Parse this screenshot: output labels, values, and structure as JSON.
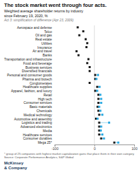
{
  "chart_data": {
    "type": "dumbbell",
    "orientation": "horizontal",
    "title": "The stock market went through four acts.",
    "subtitle": "Weighted average shareholder returns by industry\nsince February 19, 2020, %",
    "annotations": [
      "Act 3: simplification of difference (Apr 23, 2009)",
      "* group of 25 companies with highest market capitalization gains that place them in their own category",
      "Source: Corporate Performance Analytics, S&P Global",
      "McKinsey",
      "& Company"
    ],
    "categories": [
      "Aerospace and defense",
      "Telco",
      "Oil and gas",
      "Real estate",
      "Utilities",
      "Insurance",
      "Air and travel",
      "Banks",
      "Transportation and infrastructure",
      "Food and beverage",
      "Business services",
      "Diversified financials",
      "Personal and consumer goods",
      "Pharma and biotech",
      "Conglomerates",
      "Healthcare supplies",
      "Apparel, fashion, and luxury",
      "Retail",
      "High tech",
      "Consumer services",
      "Basic materials",
      "Chemicals",
      "Medical technology",
      "Automotive and assembly",
      "Logistics and trading",
      "Advanced electronics",
      "Media",
      "Healthcare services",
      "Consumer durables",
      "Mega 25*"
    ],
    "series": [
      {
        "color": "#1a1a1a",
        "marker": "square",
        "values": [
          -42,
          -28,
          -38,
          -22,
          -18,
          -20,
          -45,
          -40,
          -15,
          -18,
          -12,
          -12,
          2,
          2,
          -12,
          7,
          2,
          10,
          10,
          10,
          8,
          10,
          12,
          4,
          12,
          12,
          12,
          12,
          17,
          50
        ]
      },
      {
        "color": "#29a8e0",
        "marker": "square",
        "values": [
          null,
          null,
          null,
          null,
          null,
          null,
          null,
          null,
          null,
          null,
          null,
          null,
          9,
          5,
          null,
          13,
          7,
          15,
          17,
          17,
          12,
          15,
          20,
          8,
          37,
          17,
          16,
          20,
          24,
          60
        ]
      }
    ],
    "xlim": [
      -100,
      100
    ],
    "xticks": [
      -100,
      0,
      100
    ],
    "grid": false
  }
}
